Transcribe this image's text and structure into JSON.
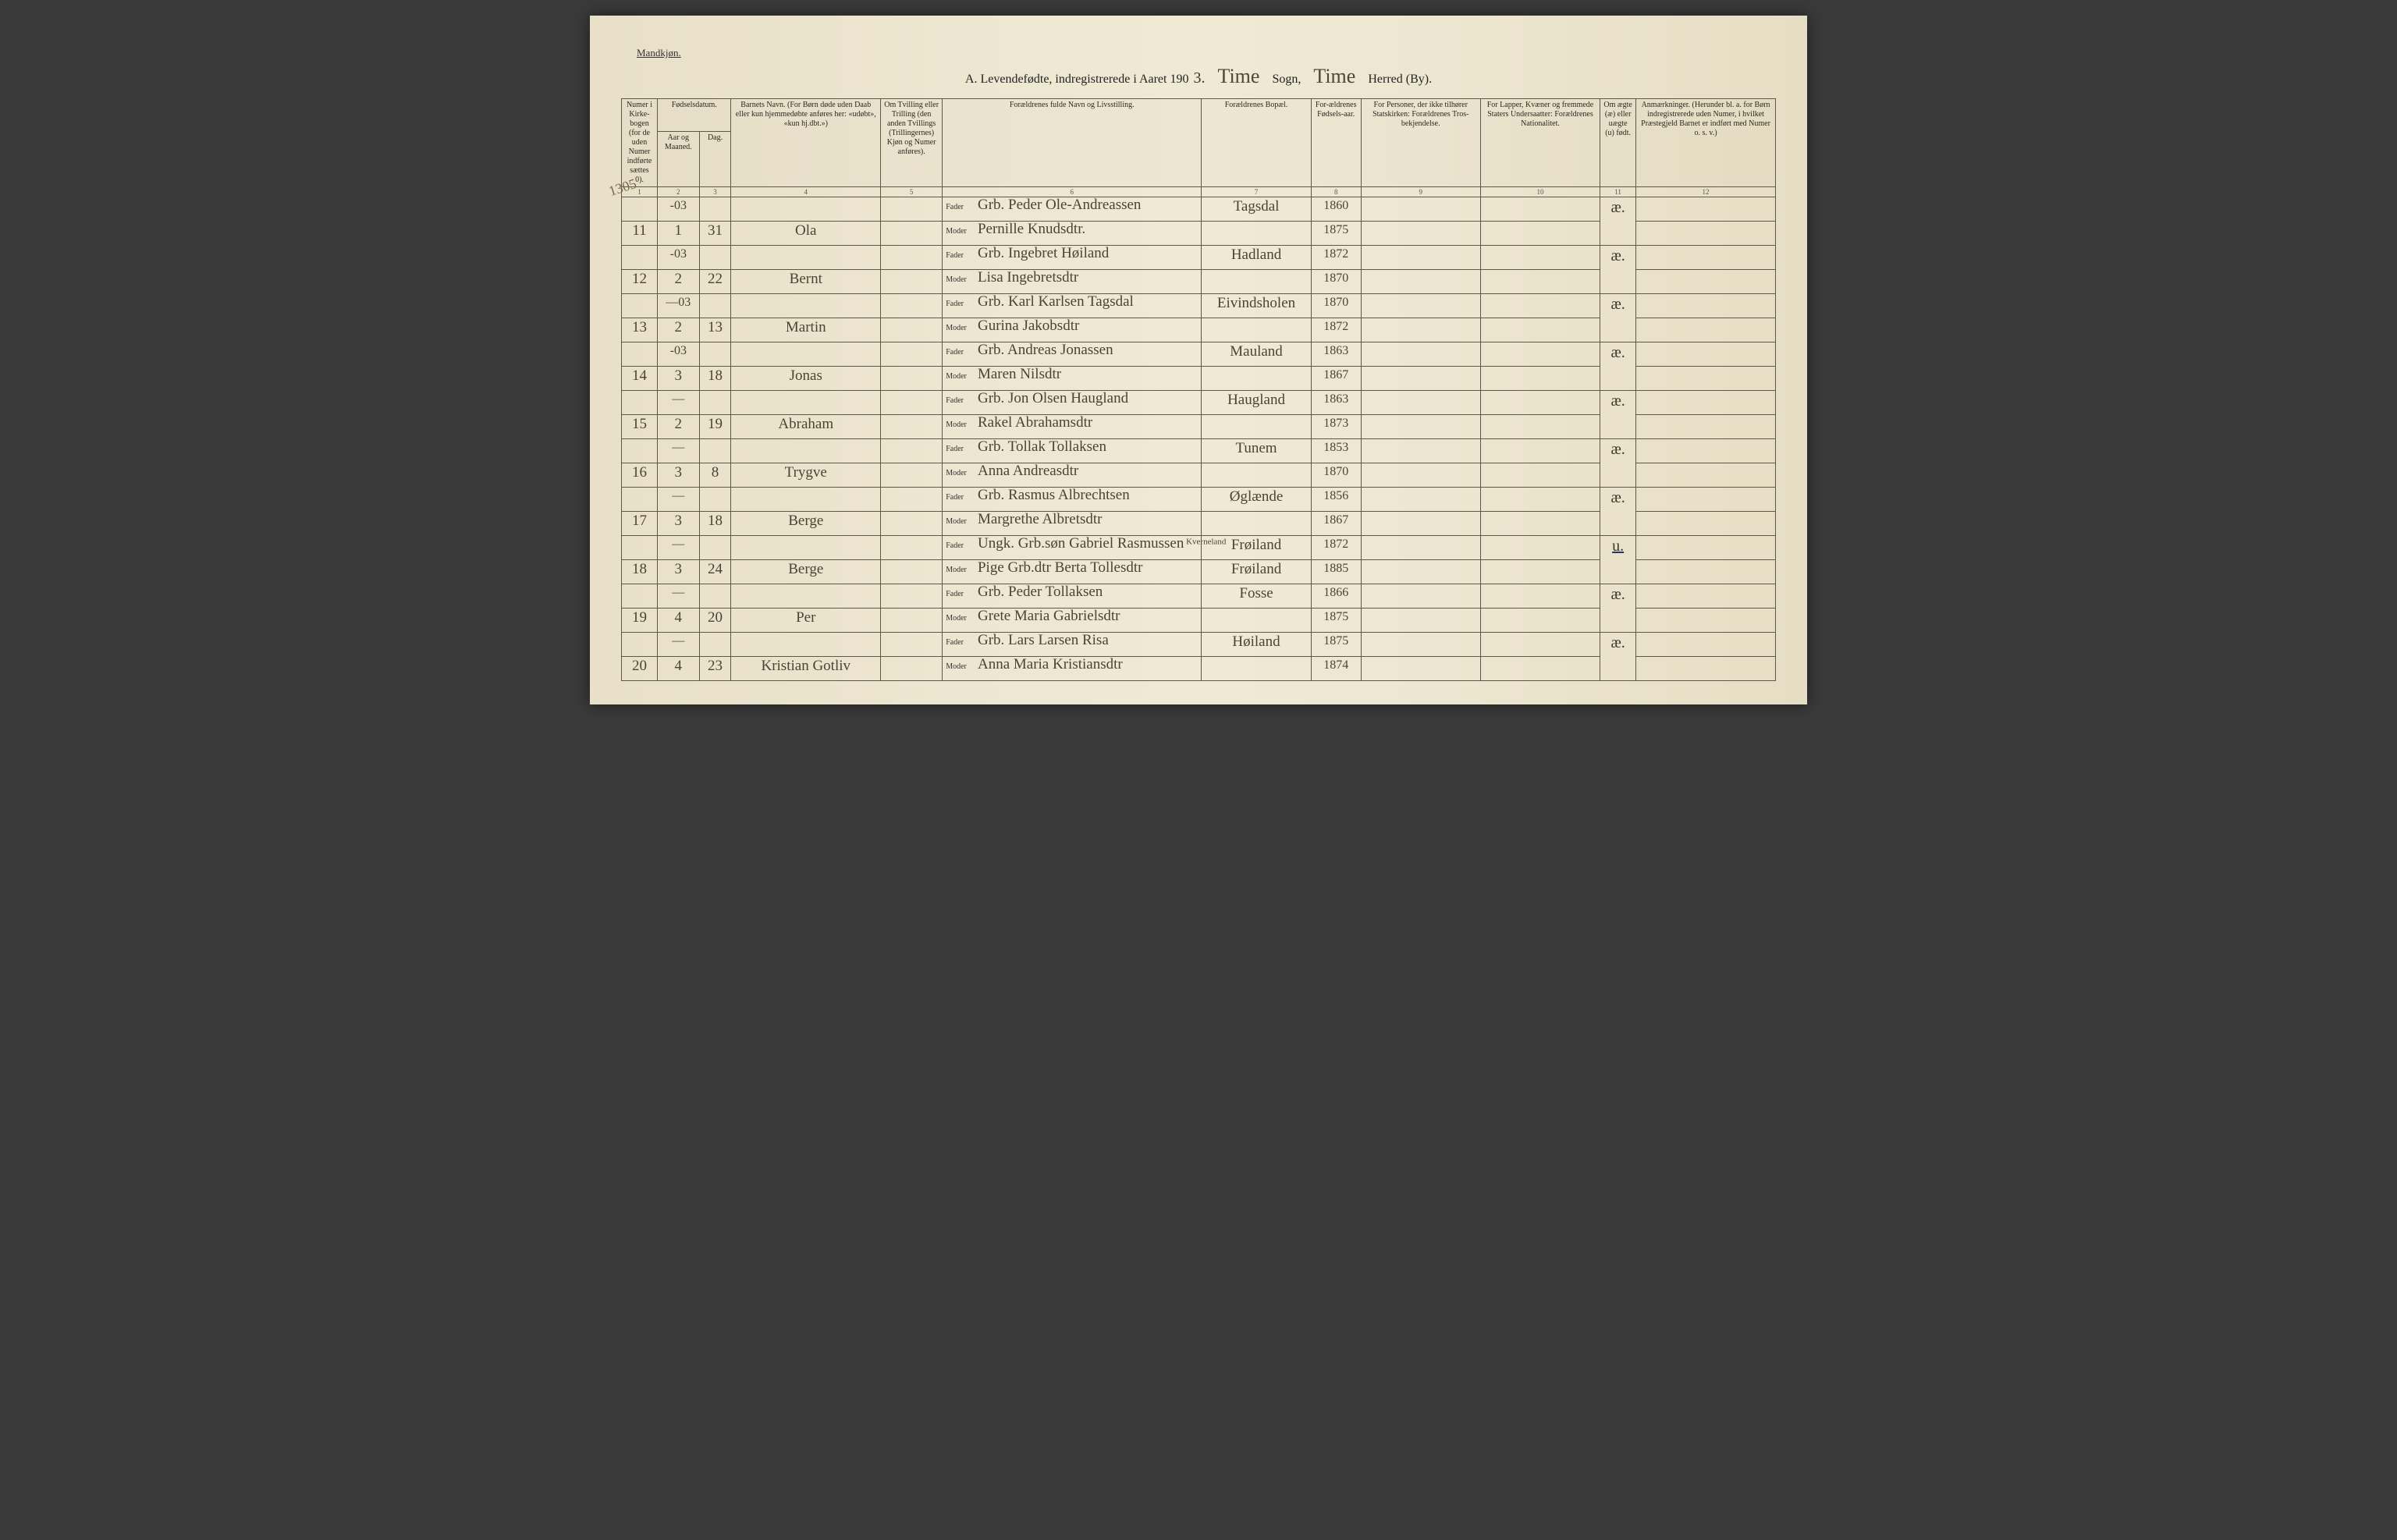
{
  "page": {
    "gender_label": "Mandkjøn.",
    "title_prefix": "A.  Levendefødte, indregistrerede i Aaret 190",
    "year_suffix": "3.",
    "sogn_hand": "Time",
    "sogn_label": "Sogn,",
    "herred_hand": "Time",
    "herred_label": "Herred (By).",
    "marginal_note": "1305"
  },
  "columns": {
    "h1": "Numer i Kirke-bogen (for de uden Numer indførte sættes 0).",
    "h2": "Fødselsdatum.",
    "h2a": "Aar og Maaned.",
    "h2b": "Dag.",
    "h3": "Barnets Navn.\n(For Børn døde uden Daab eller kun hjemmedøbte anføres her: «udøbt», «kun hj.dbt.»)",
    "h4": "Om Tvilling eller Trilling (den anden Tvillings (Trillingernes) Kjøn og Numer anføres).",
    "h5": "Forældrenes fulde Navn og Livsstilling.",
    "h6": "Forældrenes Bopæl.",
    "h7": "For-ældrenes Fødsels-aar.",
    "h8": "For Personer, der ikke tilhører Statskirken: Forældrenes Tros-bekjendelse.",
    "h9": "For Lapper, Kvæner og fremmede Staters Undersaatter: Forældrenes Nationalitet.",
    "h10": "Om ægte (æ) eller uægte (u) født.",
    "h11": "Anmærkninger.\n(Herunder bl. a. for Børn indregistrerede uden Numer, i hvilket Præstegjeld Barnet er indført med Numer o. s. v.)",
    "nums": [
      "1",
      "2",
      "3",
      "4",
      "5",
      "6",
      "7",
      "8",
      "9",
      "10",
      "11",
      "12"
    ]
  },
  "labels": {
    "fader": "Fader",
    "moder": "Moder"
  },
  "rows": [
    {
      "num": "11",
      "year": "-03",
      "month": "1",
      "day": "31",
      "child": "Ola",
      "fader": "Grb. Peder Ole-Andreassen",
      "moder": "Pernille Knudsdtr.",
      "bopael": "Tagsdal",
      "f_year": "1860",
      "m_year": "1875",
      "legit": "æ."
    },
    {
      "num": "12",
      "year": "-03",
      "month": "2",
      "day": "22",
      "child": "Bernt",
      "fader": "Grb. Ingebret Høiland",
      "moder": "Lisa Ingebretsdtr",
      "bopael": "Hadland",
      "f_year": "1872",
      "m_year": "1870",
      "legit": "æ."
    },
    {
      "num": "13",
      "year": "—03",
      "month": "2",
      "day": "13",
      "child": "Martin",
      "fader": "Grb. Karl Karlsen Tagsdal",
      "moder": "Gurina Jakobsdtr",
      "bopael": "Eivindsholen",
      "f_year": "1870",
      "m_year": "1872",
      "legit": "æ."
    },
    {
      "num": "14",
      "year": "-03",
      "month": "3",
      "day": "18",
      "child": "Jonas",
      "fader": "Grb. Andreas Jonassen",
      "moder": "Maren Nilsdtr",
      "bopael": "Mauland",
      "f_year": "1863",
      "m_year": "1867",
      "legit": "æ."
    },
    {
      "num": "15",
      "year": "—",
      "month": "2",
      "day": "19",
      "child": "Abraham",
      "fader": "Grb. Jon Olsen Haugland",
      "moder": "Rakel Abrahamsdtr",
      "bopael": "Haugland",
      "f_year": "1863",
      "m_year": "1873",
      "legit": "æ."
    },
    {
      "num": "16",
      "year": "—",
      "month": "3",
      "day": "8",
      "child": "Trygve",
      "fader": "Grb. Tollak Tollaksen",
      "moder": "Anna Andreasdtr",
      "bopael": "Tunem",
      "f_year": "1853",
      "m_year": "1870",
      "legit": "æ."
    },
    {
      "num": "17",
      "year": "—",
      "month": "3",
      "day": "18",
      "child": "Berge",
      "fader": "Grb. Rasmus Albrechtsen",
      "moder": "Margrethe Albretsdtr",
      "bopael": "Øglænde",
      "f_year": "1856",
      "m_year": "1867",
      "legit": "æ."
    },
    {
      "num": "18",
      "year": "—",
      "month": "3",
      "day": "24",
      "child": "Berge",
      "fader": "Ungk. Grb.søn Gabriel Rasmussen",
      "fader_note": "Kverneland",
      "moder": "Pige Grb.dtr Berta Tollesdtr",
      "bopael": "Frøiland",
      "m_bopael": "Frøiland",
      "f_year": "1872",
      "m_year": "1885",
      "legit": "u."
    },
    {
      "num": "19",
      "year": "—",
      "month": "4",
      "day": "20",
      "child": "Per",
      "fader": "Grb. Peder Tollaksen",
      "moder": "Grete Maria Gabrielsdtr",
      "bopael": "Fosse",
      "f_year": "1866",
      "m_year": "1875",
      "legit": "æ."
    },
    {
      "num": "20",
      "year": "—",
      "month": "4",
      "day": "23",
      "child": "Kristian Gotliv",
      "fader": "Grb. Lars Larsen Risa",
      "moder": "Anna Maria Kristiansdtr",
      "bopael": "Høiland",
      "f_year": "1875",
      "m_year": "1874",
      "legit": "æ."
    }
  ],
  "style": {
    "page_bg": "#ede6d0",
    "border_color": "#5a5a4a",
    "hand_color": "#4a4435",
    "print_color": "#2a2a20",
    "underline_blue": "#1a3a6a"
  }
}
